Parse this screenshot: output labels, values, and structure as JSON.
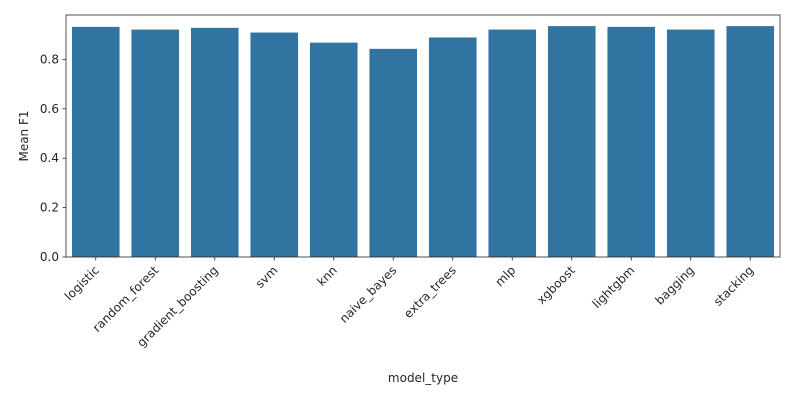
{
  "chart_data": {
    "type": "bar",
    "categories": [
      "logistic",
      "random_forest",
      "gradient_boosting",
      "svm",
      "knn",
      "naive_bayes",
      "extra_trees",
      "mlp",
      "xgboost",
      "lightgbm",
      "bagging",
      "stacking"
    ],
    "values": [
      0.932,
      0.921,
      0.928,
      0.909,
      0.868,
      0.843,
      0.889,
      0.921,
      0.935,
      0.932,
      0.921,
      0.935
    ],
    "xlabel": "model_type",
    "ylabel": "Mean F1",
    "ylim": [
      0,
      0.98
    ],
    "yticks": [
      "0.0",
      "0.2",
      "0.4",
      "0.6",
      "0.8"
    ],
    "grid": false,
    "bar_color": "#3274a1"
  }
}
